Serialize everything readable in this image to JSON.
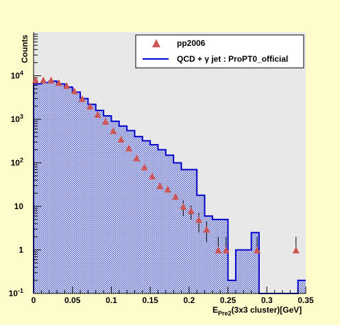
{
  "chart_data": {
    "type": "histogram",
    "title": "",
    "xlabel": {
      "main": "E",
      "sub": "Pre2",
      "rest": "(3x3 cluster)[GeV]"
    },
    "ylabel": "Counts",
    "xlim": [
      0,
      0.35
    ],
    "ylim": [
      0.1,
      100000
    ],
    "yscale": "log",
    "grid": false,
    "legend_position": "top-right",
    "x_ticks": [
      {
        "value": 0,
        "label": "0"
      },
      {
        "value": 0.05,
        "label": "0.05"
      },
      {
        "value": 0.1,
        "label": "0.1"
      },
      {
        "value": 0.15,
        "label": "0.15"
      },
      {
        "value": 0.2,
        "label": "0.2"
      },
      {
        "value": 0.25,
        "label": "0.25"
      },
      {
        "value": 0.3,
        "label": "0.3"
      },
      {
        "value": 0.35,
        "label": "0.35"
      }
    ],
    "y_ticks": [
      {
        "value": 0.1,
        "base": "10",
        "exp": "-1"
      },
      {
        "value": 1,
        "base": "1",
        "exp": ""
      },
      {
        "value": 10,
        "base": "10",
        "exp": ""
      },
      {
        "value": 100,
        "base": "10",
        "exp": "2"
      },
      {
        "value": 1000,
        "base": "10",
        "exp": "3"
      },
      {
        "value": 10000,
        "base": "10",
        "exp": "4"
      }
    ],
    "series": [
      {
        "name": "pp2006",
        "kind": "markers",
        "color": "#cc5555",
        "marker": "triangle-up",
        "x": [
          0.0025,
          0.0125,
          0.0225,
          0.0325,
          0.0425,
          0.0525,
          0.0625,
          0.0725,
          0.0825,
          0.0925,
          0.1025,
          0.1125,
          0.1225,
          0.1325,
          0.1425,
          0.1525,
          0.1625,
          0.1725,
          0.1825,
          0.1925,
          0.2025,
          0.2125,
          0.2225,
          0.2375,
          0.2475,
          0.2875,
          0.3375
        ],
        "y": [
          8000,
          8000,
          8000,
          7000,
          6000,
          4500,
          3000,
          2000,
          1300,
          900,
          550,
          350,
          220,
          130,
          80,
          50,
          30,
          25,
          17,
          10,
          8,
          5,
          3,
          1,
          1,
          1,
          1
        ],
        "err_low": [
          0,
          0,
          0,
          0,
          0,
          0,
          0,
          0,
          0,
          0,
          0,
          0,
          0,
          0,
          0,
          0,
          0,
          0,
          0,
          4,
          3,
          2.5,
          1.5,
          0,
          0,
          0,
          0
        ],
        "err_high": [
          0,
          0,
          0,
          0,
          0,
          0,
          0,
          0,
          0,
          0,
          0,
          0,
          0,
          0,
          0,
          0,
          0,
          0,
          0,
          3.5,
          2.5,
          2.2,
          1.5,
          1,
          1,
          1,
          1
        ]
      },
      {
        "name": "QCD + γ jet : ProPT0_official",
        "kind": "step-filled",
        "color": "#0000cc",
        "fill": "#3344bb",
        "bin_edges": [
          0,
          0.01,
          0.02,
          0.03,
          0.04,
          0.05,
          0.06,
          0.07,
          0.08,
          0.09,
          0.1,
          0.11,
          0.12,
          0.13,
          0.14,
          0.15,
          0.16,
          0.17,
          0.18,
          0.19,
          0.2,
          0.21,
          0.22,
          0.23,
          0.24,
          0.25,
          0.26,
          0.27,
          0.28,
          0.29,
          0.3,
          0.31,
          0.32,
          0.33,
          0.34,
          0.35
        ],
        "values": [
          6500,
          7000,
          7500,
          6500,
          5500,
          4200,
          3000,
          2200,
          1600,
          1200,
          900,
          700,
          550,
          400,
          320,
          260,
          200,
          150,
          100,
          70,
          70,
          18,
          6,
          5,
          5,
          0.2,
          1,
          1,
          2.5,
          0.1,
          0.1,
          0.1,
          0.1,
          0.1,
          0.2
        ]
      }
    ]
  },
  "colors": {
    "background": "#fffccc",
    "frame": "#e8e8e8",
    "data_marker": "#cc5555",
    "histogram_line": "#0000cc",
    "histogram_fill": "#3344bb"
  }
}
